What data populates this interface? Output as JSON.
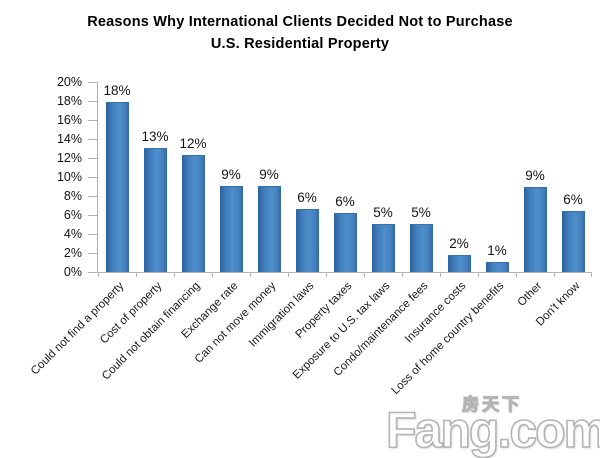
{
  "title": {
    "line1": "Reasons Why International Clients Decided Not to Purchase",
    "line2": "U.S. Residential Property"
  },
  "chart_data": {
    "type": "bar",
    "title": "Reasons Why International Clients Decided Not to Purchase U.S. Residential Property",
    "categories": [
      "Could not find a property",
      "Cost of property",
      "Could not obtain financing",
      "Exchange rate",
      "Can not move money",
      "Immigration laws",
      "Property taxes",
      "Exposure to U.S. tax laws",
      "Condo/maintenance fees",
      "Insurance costs",
      "Loss of home country benefits",
      "Other",
      "Don't know"
    ],
    "values": [
      18,
      13,
      12,
      9,
      9,
      6,
      6,
      5,
      5,
      2,
      1,
      9,
      6
    ],
    "value_labels": [
      "18%",
      "13%",
      "12%",
      "9%",
      "9%",
      "6%",
      "6%",
      "5%",
      "5%",
      "2%",
      "1%",
      "9%",
      "6%"
    ],
    "bar_heights_pct": [
      17.8,
      13.0,
      12.2,
      8.9,
      8.9,
      6.5,
      6.1,
      5.0,
      4.9,
      1.7,
      0.9,
      8.8,
      6.3
    ],
    "xlabel": "",
    "ylabel": "",
    "ylim": [
      0,
      20
    ],
    "y_tick_step": 2,
    "y_tick_labels": [
      "0%",
      "2%",
      "4%",
      "6%",
      "8%",
      "10%",
      "12%",
      "14%",
      "16%",
      "18%",
      "20%"
    ],
    "grid": false,
    "legend": false,
    "bar_color": "#3f7cbb",
    "bar_edge_color": "#2d5f9d",
    "axis_color": "#b3b3b3",
    "label_rotation_deg": -45
  },
  "watermark": {
    "chinese": "房天下",
    "latin": "Fang",
    "tld": ".com"
  }
}
